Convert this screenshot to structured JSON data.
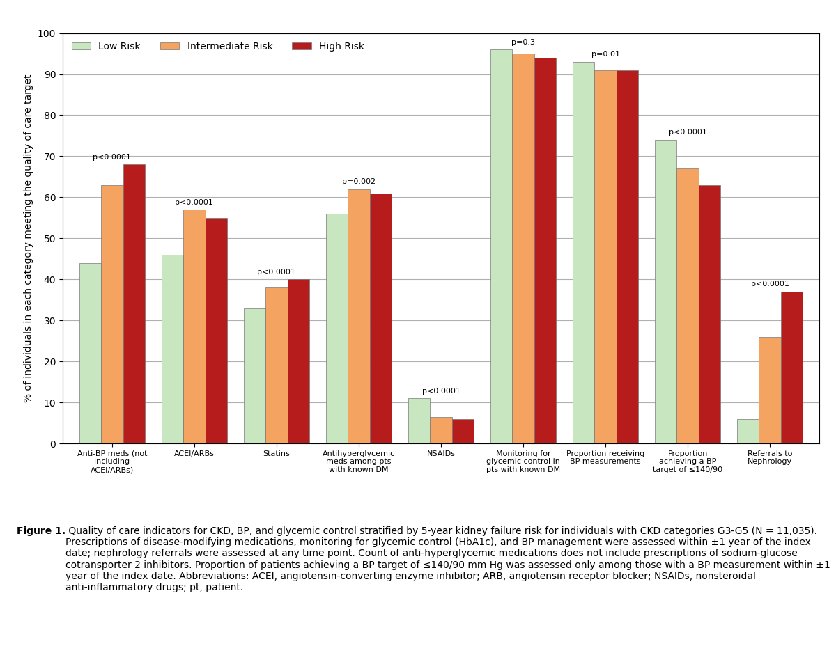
{
  "chart_data": {
    "type": "bar",
    "categories": [
      "Anti-BP meds (not\nincluding\nACEI/ARBs)",
      "ACEI/ARBs",
      "Statins",
      "Antihyperglycemic\nmeds among pts\nwith known DM",
      "NSAIDs",
      "Monitoring for\nglycemic control in\npts with known DM",
      "Proportion receiving\nBP measurements",
      "Proportion\nachieving a BP\ntarget of ≤140/90",
      "Referrals to\nNephrology"
    ],
    "series": [
      {
        "name": "Low Risk",
        "color": "#c8e6c0",
        "values": [
          44,
          46,
          33,
          56,
          11,
          96,
          93,
          74,
          6
        ]
      },
      {
        "name": "Intermediate Risk",
        "color": "#f4a460",
        "values": [
          63,
          57,
          38,
          62,
          6.5,
          95,
          91,
          67,
          26
        ]
      },
      {
        "name": "High Risk",
        "color": "#b71c1c",
        "values": [
          68,
          55,
          40,
          61,
          6,
          94,
          91,
          63,
          37
        ]
      }
    ],
    "annotations": [
      "p<0.0001",
      "p<0.0001",
      "p<0.0001",
      "p=0.002",
      "p<0.0001",
      "p=0.3",
      "p=0.01",
      "p<0.0001",
      "p<0.0001"
    ],
    "ylabel": "% of individuals in each category meeting the quality of care target",
    "ylim": [
      0,
      100
    ],
    "yticks": [
      0,
      10,
      20,
      30,
      40,
      50,
      60,
      70,
      80,
      90,
      100
    ],
    "grid": true,
    "legend": "upper left",
    "caption": {
      "label": "Figure 1.",
      "text": " Quality of care indicators for CKD, BP, and glycemic control stratified by 5-year kidney failure risk for individuals with CKD categories G3-G5 (N = 11,035). Prescriptions of disease-modifying medications, monitoring for glycemic control (HbA1c), and BP management were assessed within ±1 year of the index date; nephrology referrals were assessed at any time point. Count of anti-hyperglycemic medications does not include prescriptions of sodium-glucose cotransporter 2 inhibitors. Proportion of patients achieving a BP target of ≤140/90 mm Hg was assessed only among those with a BP measurement within ±1 year of the index date. Abbreviations: ACEI, angiotensin-converting enzyme inhibitor; ARB, angiotensin receptor blocker; NSAIDs, nonsteroidal anti-inflammatory drugs; pt, patient."
    }
  }
}
